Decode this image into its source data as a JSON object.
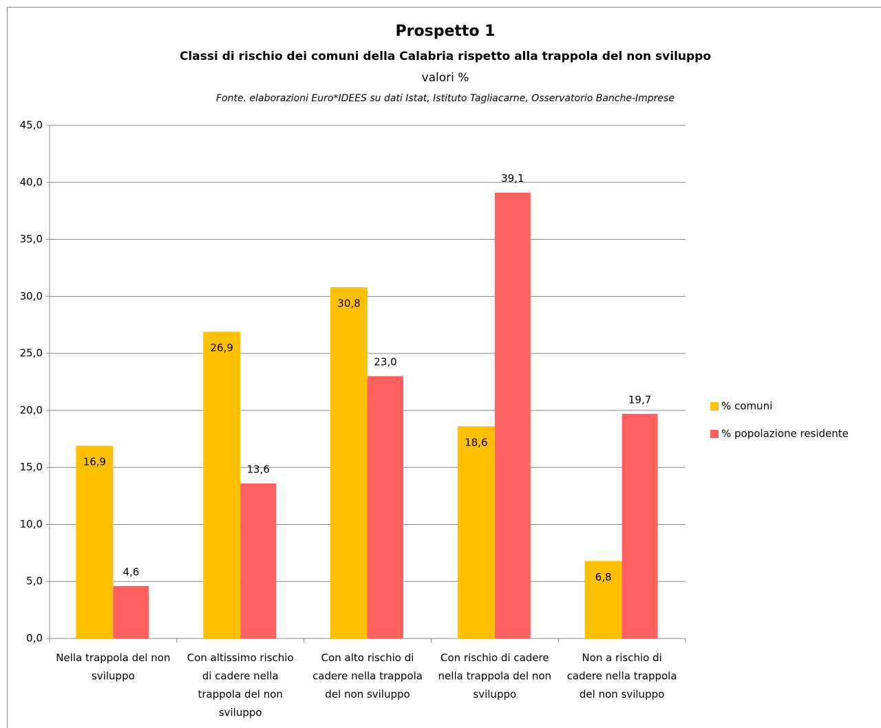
{
  "chart_data": {
    "type": "bar",
    "title": "Prospetto 1",
    "subtitle": "Classi di rischio dei comuni della Calabria rispetto alla trappola del non sviluppo",
    "unit_label": "valori %",
    "source": "Fonte. elaborazioni Euro*IDEES su dati Istat, Istituto Tagliacarne, Osservatorio Banche-Imprese",
    "categories": [
      "Nella trappola del non sviluppo",
      "Con altissimo rischio di cadere nella trappola del non sviluppo",
      "Con alto rischio di cadere nella trappola del non sviluppo",
      "Con rischio di cadere nella trappola del non sviluppo",
      "Non a rischio di cadere nella trappola del non sviluppo"
    ],
    "series": [
      {
        "name": "% comuni",
        "color": "#FFC000",
        "values": [
          16.9,
          26.9,
          30.8,
          18.6,
          6.8
        ],
        "value_labels": [
          "16,9",
          "26,9",
          "30,8",
          "18,6",
          "6,8"
        ]
      },
      {
        "name": "% popolazione residente",
        "color": "#FF6161",
        "values": [
          4.6,
          13.6,
          23.0,
          39.1,
          19.7
        ],
        "value_labels": [
          "4,6",
          "13,6",
          "23,0",
          "39,1",
          "19,7"
        ]
      }
    ],
    "ylim": [
      0,
      45
    ],
    "yticks": [
      {
        "value": 0,
        "label": "0,0"
      },
      {
        "value": 5,
        "label": "5,0"
      },
      {
        "value": 10,
        "label": "10,0"
      },
      {
        "value": 15,
        "label": "15,0"
      },
      {
        "value": 20,
        "label": "20,0"
      },
      {
        "value": 25,
        "label": "25,0"
      },
      {
        "value": 30,
        "label": "30,0"
      },
      {
        "value": 35,
        "label": "35,0"
      },
      {
        "value": 40,
        "label": "40,0"
      },
      {
        "value": 45,
        "label": "45,0"
      }
    ],
    "grid": true,
    "legend": "right"
  }
}
